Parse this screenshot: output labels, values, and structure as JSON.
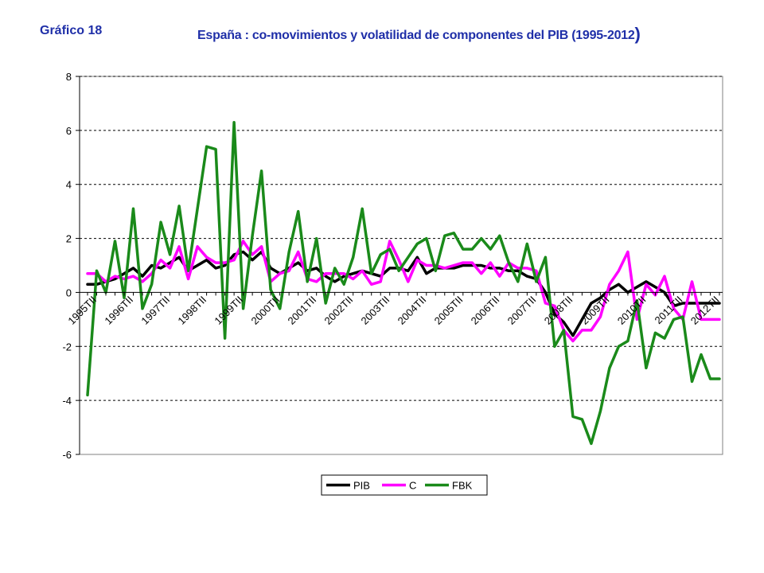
{
  "header": {
    "label": "Gráfico 18",
    "title": "España : co-movimientos y volatilidad de componentes del PIB (1995-2012",
    "title_close": ")"
  },
  "chart_data": {
    "type": "line",
    "title": "España : co-movimientos y volatilidad de componentes del PIB (1995-2012)",
    "xlabel": "",
    "ylabel": "",
    "ylim": [
      -6,
      8
    ],
    "yticks": [
      -6,
      -4,
      -2,
      0,
      2,
      4,
      6,
      8
    ],
    "grid": "horizontal dashed",
    "legend_position": "bottom",
    "x_tick_labels": [
      "1995TII",
      "1996TII",
      "1997TII",
      "1998TII",
      "1999TII",
      "2000TII",
      "2001TII",
      "2002TII",
      "2003TII",
      "2004TII",
      "2005TII",
      "2006TII",
      "2007TII",
      "2008TII",
      "2009TII",
      "2010TII",
      "2011TII",
      "2012TII"
    ],
    "x": [
      "1995TII",
      "1995TIII",
      "1995TIV",
      "1996TI",
      "1996TII",
      "1996TIII",
      "1996TIV",
      "1997TI",
      "1997TII",
      "1997TIII",
      "1997TIV",
      "1998TI",
      "1998TII",
      "1998TIII",
      "1998TIV",
      "1999TI",
      "1999TII",
      "1999TIII",
      "1999TIV",
      "2000TI",
      "2000TII",
      "2000TIII",
      "2000TIV",
      "2001TI",
      "2001TII",
      "2001TIII",
      "2001TIV",
      "2002TI",
      "2002TII",
      "2002TIII",
      "2002TIV",
      "2003TI",
      "2003TII",
      "2003TIII",
      "2003TIV",
      "2004TI",
      "2004TII",
      "2004TIII",
      "2004TIV",
      "2005TI",
      "2005TII",
      "2005TIII",
      "2005TIV",
      "2006TI",
      "2006TII",
      "2006TIII",
      "2006TIV",
      "2007TI",
      "2007TII",
      "2007TIII",
      "2007TIV",
      "2008TI",
      "2008TII",
      "2008TIII",
      "2008TIV",
      "2009TI",
      "2009TII",
      "2009TIII",
      "2009TIV",
      "2010TI",
      "2010TII",
      "2010TIII",
      "2010TIV",
      "2011TI",
      "2011TII",
      "2011TIII",
      "2011TIV",
      "2012TI",
      "2012TII",
      "2012TIII"
    ],
    "series": [
      {
        "name": "PIB",
        "color": "#000000",
        "values": [
          0.3,
          0.3,
          0.4,
          0.5,
          0.7,
          0.9,
          0.6,
          1.0,
          0.9,
          1.1,
          1.3,
          0.8,
          1.0,
          1.2,
          0.9,
          1.0,
          1.4,
          1.5,
          1.2,
          1.5,
          0.9,
          0.7,
          0.9,
          1.1,
          0.8,
          0.9,
          0.6,
          0.4,
          0.6,
          0.7,
          0.8,
          0.7,
          0.6,
          0.9,
          0.9,
          0.8,
          1.3,
          0.7,
          0.9,
          0.9,
          0.9,
          1.0,
          1.0,
          1.0,
          0.9,
          0.9,
          0.8,
          0.8,
          0.6,
          0.5,
          0.0,
          -0.8,
          -1.1,
          -1.6,
          -1.0,
          -0.4,
          -0.2,
          0.1,
          0.3,
          0.0,
          0.2,
          0.4,
          0.2,
          0.0,
          -0.5,
          -0.4,
          -0.4,
          -0.4,
          -0.4,
          -0.4
        ]
      },
      {
        "name": "C",
        "color": "#ff00ff",
        "values": [
          0.7,
          0.7,
          0.4,
          0.6,
          0.5,
          0.6,
          0.4,
          0.7,
          1.2,
          0.9,
          1.7,
          0.5,
          1.7,
          1.3,
          1.1,
          1.1,
          1.2,
          1.9,
          1.4,
          1.7,
          0.4,
          0.7,
          0.8,
          1.5,
          0.5,
          0.4,
          0.7,
          0.7,
          0.7,
          0.5,
          0.8,
          0.3,
          0.4,
          1.9,
          1.2,
          0.4,
          1.2,
          1.0,
          1.0,
          0.9,
          1.0,
          1.1,
          1.1,
          0.7,
          1.1,
          0.6,
          1.1,
          0.9,
          0.9,
          0.8,
          -0.4,
          -0.5,
          -1.4,
          -1.8,
          -1.4,
          -1.4,
          -0.9,
          0.3,
          0.8,
          1.5,
          -1.0,
          0.3,
          -0.1,
          0.6,
          -0.6,
          -1.0,
          0.4,
          -1.0,
          -1.0,
          -1.0
        ]
      },
      {
        "name": "FBK",
        "color": "#1a8a1a",
        "values": [
          -3.8,
          0.8,
          0.0,
          1.9,
          -0.2,
          3.1,
          -0.6,
          0.3,
          2.6,
          1.4,
          3.2,
          0.8,
          3.1,
          5.4,
          5.3,
          -1.7,
          6.3,
          -0.6,
          2.1,
          4.5,
          0.1,
          -0.6,
          1.5,
          3.0,
          0.4,
          2.0,
          -0.4,
          0.9,
          0.3,
          1.3,
          3.1,
          0.7,
          1.4,
          1.6,
          0.8,
          1.3,
          1.8,
          2.0,
          0.8,
          2.1,
          2.2,
          1.6,
          1.6,
          2.0,
          1.6,
          2.1,
          1.1,
          0.4,
          1.8,
          0.4,
          1.3,
          -2.0,
          -1.4,
          -4.6,
          -4.7,
          -5.6,
          -4.4,
          -2.8,
          -2.0,
          -1.8,
          -0.3,
          -2.8,
          -1.5,
          -1.7,
          -1.0,
          -0.9,
          -3.3,
          -2.3,
          -3.2,
          -3.2
        ]
      }
    ]
  },
  "legend": [
    {
      "name": "PIB",
      "color": "#000000"
    },
    {
      "name": "C",
      "color": "#ff00ff"
    },
    {
      "name": "FBK",
      "color": "#1a8a1a"
    }
  ]
}
